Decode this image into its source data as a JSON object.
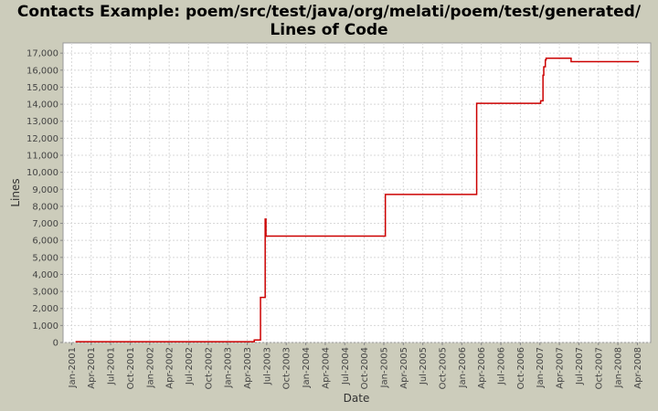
{
  "chart_data": {
    "type": "line",
    "step": "post",
    "title": [
      "Contacts Example: poem/src/test/java/org/melati/poem/test/generated/",
      "Lines of Code"
    ],
    "x_label": "Date",
    "y_label": "Lines",
    "series": [
      {
        "name": "Lines",
        "color": "#cc0000",
        "x": [
          2001.05,
          2003.34,
          2003.42,
          2003.48,
          2003.49,
          2005.02,
          2006.19,
          2007.01,
          2007.04,
          2007.05,
          2007.07,
          2007.08,
          2007.4,
          2008.27
        ],
        "values": [
          50,
          150,
          2650,
          7250,
          6250,
          8700,
          14050,
          14200,
          15700,
          16200,
          16600,
          16700,
          16500,
          16500
        ]
      }
    ],
    "xlim": [
      2000.89,
      2008.42
    ],
    "ylim": [
      0,
      17600
    ],
    "yticks": [
      0,
      {
        "value": 1000,
        "label": "1,000"
      },
      {
        "value": 2000,
        "label": "2,000"
      },
      {
        "value": 3000,
        "label": "3,000"
      },
      {
        "value": 4000,
        "label": "4,000"
      },
      {
        "value": 5000,
        "label": "5,000"
      },
      {
        "value": 6000,
        "label": "6,000"
      },
      {
        "value": 7000,
        "label": "7,000"
      },
      {
        "value": 8000,
        "label": "8,000"
      },
      {
        "value": 9000,
        "label": "9,000"
      },
      {
        "value": 10000,
        "label": "10,000"
      },
      {
        "value": 11000,
        "label": "11,000"
      },
      {
        "value": 12000,
        "label": "12,000"
      },
      {
        "value": 13000,
        "label": "13,000"
      },
      {
        "value": 14000,
        "label": "14,000"
      },
      {
        "value": 15000,
        "label": "15,000"
      },
      {
        "value": 16000,
        "label": "16,000"
      },
      {
        "value": 17000,
        "label": "17,000"
      }
    ],
    "xticks": [
      {
        "value": 2001,
        "label": "Jan-2001"
      },
      {
        "value": 2001.25,
        "label": "Apr-2001"
      },
      {
        "value": 2001.5,
        "label": "Jul-2001"
      },
      {
        "value": 2001.75,
        "label": "Oct-2001"
      },
      {
        "value": 2002,
        "label": "Jan-2002"
      },
      {
        "value": 2002.25,
        "label": "Apr-2002"
      },
      {
        "value": 2002.5,
        "label": "Jul-2002"
      },
      {
        "value": 2002.75,
        "label": "Oct-2002"
      },
      {
        "value": 2003,
        "label": "Jan-2003"
      },
      {
        "value": 2003.25,
        "label": "Apr-2003"
      },
      {
        "value": 2003.5,
        "label": "Jul-2003"
      },
      {
        "value": 2003.75,
        "label": "Oct-2003"
      },
      {
        "value": 2004,
        "label": "Jan-2004"
      },
      {
        "value": 2004.25,
        "label": "Apr-2004"
      },
      {
        "value": 2004.5,
        "label": "Jul-2004"
      },
      {
        "value": 2004.75,
        "label": "Oct-2004"
      },
      {
        "value": 2005,
        "label": "Jan-2005"
      },
      {
        "value": 2005.25,
        "label": "Apr-2005"
      },
      {
        "value": 2005.5,
        "label": "Jul-2005"
      },
      {
        "value": 2005.75,
        "label": "Oct-2005"
      },
      {
        "value": 2006,
        "label": "Jan-2006"
      },
      {
        "value": 2006.25,
        "label": "Apr-2006"
      },
      {
        "value": 2006.5,
        "label": "Jul-2006"
      },
      {
        "value": 2006.75,
        "label": "Oct-2006"
      },
      {
        "value": 2007,
        "label": "Jan-2007"
      },
      {
        "value": 2007.25,
        "label": "Apr-2007"
      },
      {
        "value": 2007.5,
        "label": "Jul-2007"
      },
      {
        "value": 2007.75,
        "label": "Oct-2007"
      },
      {
        "value": 2008,
        "label": "Jan-2008"
      },
      {
        "value": 2008.25,
        "label": "Apr-2008"
      }
    ],
    "grid": true
  }
}
